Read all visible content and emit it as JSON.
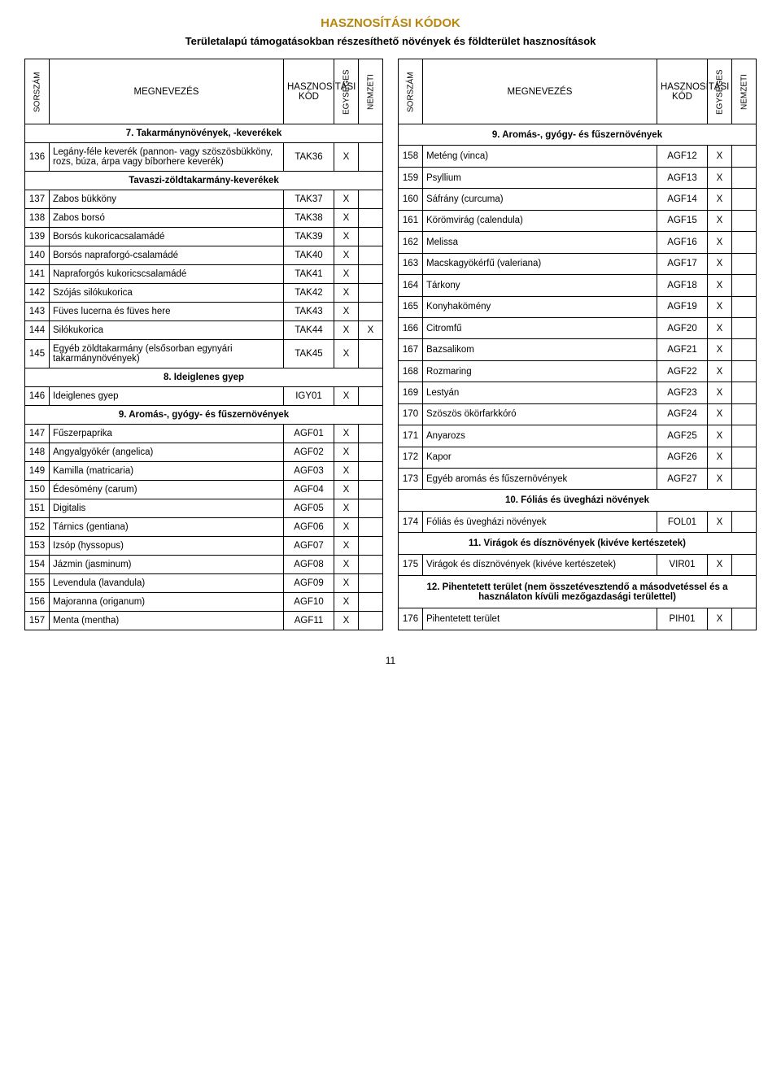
{
  "title": "HASZNOSÍTÁSI KÓDOK",
  "subtitle": "Területalapú támogatásokban részesíthető növények és földterület hasznosítások",
  "pagenum": "11",
  "headers": {
    "sorszam": "SORSZÁM",
    "megnevezes": "MEGNEVEZÉS",
    "kod": "HASZNOSÍTÁSI KÓD",
    "egyseges": "EGYSÉGES",
    "nemzeti": "NEMZETI"
  },
  "left": [
    {
      "type": "section",
      "label": "7. Takarmánynövények, -keverékek"
    },
    {
      "type": "row",
      "idx": "136",
      "name": "Legány-féle keverék (pannon- vagy szöszösbükköny, rozs, búza, árpa vagy bíborhere keverék)",
      "code": "TAK36",
      "eg": "X",
      "nm": ""
    },
    {
      "type": "subsection",
      "label": "Tavaszi-zöldtakarmány-keverékek"
    },
    {
      "type": "row",
      "idx": "137",
      "name": "Zabos bükköny",
      "code": "TAK37",
      "eg": "X",
      "nm": ""
    },
    {
      "type": "row",
      "idx": "138",
      "name": "Zabos borsó",
      "code": "TAK38",
      "eg": "X",
      "nm": ""
    },
    {
      "type": "row",
      "idx": "139",
      "name": "Borsós kukoricacsalamádé",
      "code": "TAK39",
      "eg": "X",
      "nm": ""
    },
    {
      "type": "row",
      "idx": "140",
      "name": "Borsós napraforgó-csalamádé",
      "code": "TAK40",
      "eg": "X",
      "nm": ""
    },
    {
      "type": "row",
      "idx": "141",
      "name": "Napraforgós kukoricscsalamádé",
      "code": "TAK41",
      "eg": "X",
      "nm": ""
    },
    {
      "type": "row",
      "idx": "142",
      "name": "Szójás silókukorica",
      "code": "TAK42",
      "eg": "X",
      "nm": ""
    },
    {
      "type": "row",
      "idx": "143",
      "name": "Füves lucerna és füves here",
      "code": "TAK43",
      "eg": "X",
      "nm": ""
    },
    {
      "type": "row",
      "idx": "144",
      "name": "Silókukorica",
      "code": "TAK44",
      "eg": "X",
      "nm": "X"
    },
    {
      "type": "row",
      "idx": "145",
      "name": "Egyéb zöldtakarmány (elsősorban egynyári takarmánynövények)",
      "code": "TAK45",
      "eg": "X",
      "nm": ""
    },
    {
      "type": "section",
      "label": "8. Ideiglenes gyep"
    },
    {
      "type": "row",
      "idx": "146",
      "name": "Ideiglenes gyep",
      "code": "IGY01",
      "eg": "X",
      "nm": ""
    },
    {
      "type": "section",
      "label": "9. Aromás-, gyógy- és fűszernövények"
    },
    {
      "type": "row",
      "idx": "147",
      "name": "Fűszerpaprika",
      "code": "AGF01",
      "eg": "X",
      "nm": ""
    },
    {
      "type": "row",
      "idx": "148",
      "name": "Angyalgyökér (angelica)",
      "code": "AGF02",
      "eg": "X",
      "nm": ""
    },
    {
      "type": "row",
      "idx": "149",
      "name": "Kamilla (matricaria)",
      "code": "AGF03",
      "eg": "X",
      "nm": ""
    },
    {
      "type": "row",
      "idx": "150",
      "name": "Édesömény (carum)",
      "code": "AGF04",
      "eg": "X",
      "nm": ""
    },
    {
      "type": "row",
      "idx": "151",
      "name": "Digitalis",
      "code": "AGF05",
      "eg": "X",
      "nm": ""
    },
    {
      "type": "row",
      "idx": "152",
      "name": "Tárnics (gentiana)",
      "code": "AGF06",
      "eg": "X",
      "nm": ""
    },
    {
      "type": "row",
      "idx": "153",
      "name": "Izsóp (hyssopus)",
      "code": "AGF07",
      "eg": "X",
      "nm": ""
    },
    {
      "type": "row",
      "idx": "154",
      "name": "Jázmin (jasminum)",
      "code": "AGF08",
      "eg": "X",
      "nm": ""
    },
    {
      "type": "row",
      "idx": "155",
      "name": "Levendula (lavandula)",
      "code": "AGF09",
      "eg": "X",
      "nm": ""
    },
    {
      "type": "row",
      "idx": "156",
      "name": "Majoranna (origanum)",
      "code": "AGF10",
      "eg": "X",
      "nm": ""
    },
    {
      "type": "row",
      "idx": "157",
      "name": "Menta (mentha)",
      "code": "AGF11",
      "eg": "X",
      "nm": ""
    }
  ],
  "right": [
    {
      "type": "section",
      "label": "9. Aromás-, gyógy- és fűszernövények"
    },
    {
      "type": "row",
      "idx": "158",
      "name": "Meténg (vinca)",
      "code": "AGF12",
      "eg": "X",
      "nm": ""
    },
    {
      "type": "row",
      "idx": "159",
      "name": "Psyllium",
      "code": "AGF13",
      "eg": "X",
      "nm": ""
    },
    {
      "type": "row",
      "idx": "160",
      "name": "Sáfrány (curcuma)",
      "code": "AGF14",
      "eg": "X",
      "nm": ""
    },
    {
      "type": "row",
      "idx": "161",
      "name": "Körömvirág (calendula)",
      "code": "AGF15",
      "eg": "X",
      "nm": ""
    },
    {
      "type": "row",
      "idx": "162",
      "name": "Melissa",
      "code": "AGF16",
      "eg": "X",
      "nm": ""
    },
    {
      "type": "row",
      "idx": "163",
      "name": "Macskagyökérfű (valeriana)",
      "code": "AGF17",
      "eg": "X",
      "nm": ""
    },
    {
      "type": "row",
      "idx": "164",
      "name": "Tárkony",
      "code": "AGF18",
      "eg": "X",
      "nm": ""
    },
    {
      "type": "row",
      "idx": "165",
      "name": "Konyhakömény",
      "code": "AGF19",
      "eg": "X",
      "nm": ""
    },
    {
      "type": "row",
      "idx": "166",
      "name": "Citromfű",
      "code": "AGF20",
      "eg": "X",
      "nm": ""
    },
    {
      "type": "row",
      "idx": "167",
      "name": "Bazsalikom",
      "code": "AGF21",
      "eg": "X",
      "nm": ""
    },
    {
      "type": "row",
      "idx": "168",
      "name": "Rozmaring",
      "code": "AGF22",
      "eg": "X",
      "nm": ""
    },
    {
      "type": "row",
      "idx": "169",
      "name": "Lestyán",
      "code": "AGF23",
      "eg": "X",
      "nm": ""
    },
    {
      "type": "row",
      "idx": "170",
      "name": "Szöszös ökörfarkkóró",
      "code": "AGF24",
      "eg": "X",
      "nm": ""
    },
    {
      "type": "row",
      "idx": "171",
      "name": "Anyarozs",
      "code": "AGF25",
      "eg": "X",
      "nm": ""
    },
    {
      "type": "row",
      "idx": "172",
      "name": "Kapor",
      "code": "AGF26",
      "eg": "X",
      "nm": ""
    },
    {
      "type": "row",
      "idx": "173",
      "name": "Egyéb aromás és fűszernövények",
      "code": "AGF27",
      "eg": "X",
      "nm": ""
    },
    {
      "type": "section",
      "label": "10. Fóliás és üvegházi növények"
    },
    {
      "type": "row",
      "idx": "174",
      "name": "Fóliás és üvegházi növények",
      "code": "FOL01",
      "eg": "X",
      "nm": ""
    },
    {
      "type": "section",
      "label": "11. Virágok és dísznövények (kivéve kertészetek)"
    },
    {
      "type": "row",
      "idx": "175",
      "name": "Virágok és dísznövények (kivéve kertészetek)",
      "code": "VIR01",
      "eg": "X",
      "nm": ""
    },
    {
      "type": "section",
      "label": "12. Pihentetett terület (nem összetévesztendő a másodvetéssel és a használaton kívüli mezőgazdasági területtel)"
    },
    {
      "type": "row",
      "idx": "176",
      "name": "Pihentetett terület",
      "code": "PIH01",
      "eg": "X",
      "nm": ""
    }
  ]
}
